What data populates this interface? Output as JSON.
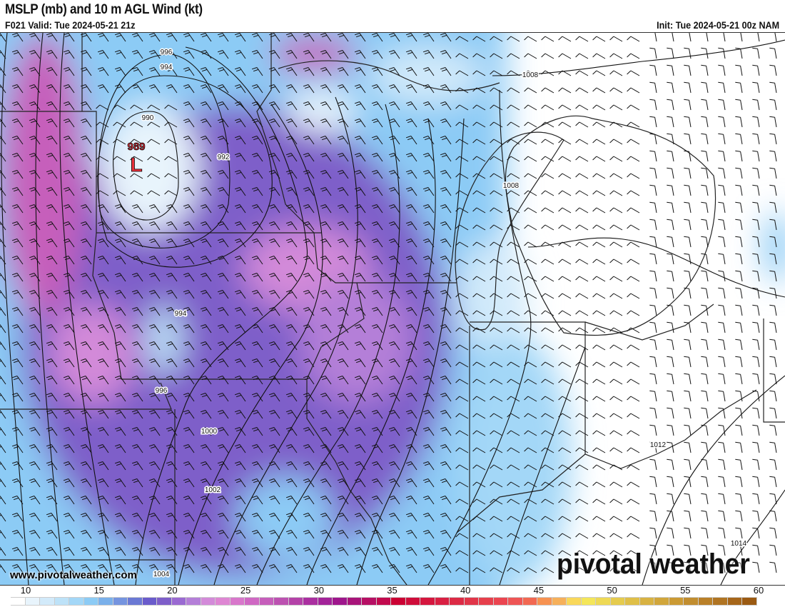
{
  "header": {
    "title": "MSLP (mb) and 10 m AGL Wind (kt)",
    "valid": "F021 Valid: Tue 2024-05-21 21z",
    "init": "Init: Tue 2024-05-21 00z NAM"
  },
  "map": {
    "low_center": {
      "symbol": "L",
      "pressure": "989",
      "color": "#e8323c"
    },
    "isobar_labels": [
      "996",
      "994",
      "990",
      "992",
      "994",
      "996",
      "1000",
      "1002",
      "1004",
      "1008",
      "1008",
      "1012",
      "1014"
    ],
    "field": "10 m wind speed (kt)",
    "barbs": "wind barbs, southwesterly, stronger west of Lake Michigan"
  },
  "footer": {
    "website": "www.pivotalweather.com",
    "logo": "pivotal weather"
  },
  "colorbar": {
    "min": 10,
    "max": 60,
    "step": 1,
    "ticks": [
      "10",
      "15",
      "20",
      "25",
      "30",
      "35",
      "40",
      "45",
      "50",
      "55",
      "60"
    ],
    "colors": [
      "#ffffff",
      "#e8f4fc",
      "#d2eafa",
      "#bde2f8",
      "#a3d7f7",
      "#8ccbf5",
      "#7ab0ea",
      "#7594df",
      "#6b79d4",
      "#6a5bcb",
      "#7e5ec9",
      "#9a6ad2",
      "#b47fd8",
      "#d38ad9",
      "#de86d3",
      "#d877cb",
      "#cf68c3",
      "#c65ebb",
      "#bc52b1",
      "#b442a8",
      "#aa2fa0",
      "#a32399",
      "#9e168c",
      "#a8147a",
      "#b60f64",
      "#c20a4e",
      "#cb0033",
      "#cf0c3a",
      "#d5163e",
      "#d91f42",
      "#dc2a45",
      "#e13549",
      "#e63f4c",
      "#eb4550",
      "#ee5555",
      "#f26852",
      "#f79251",
      "#f6b05a",
      "#f9d85a",
      "#f4e659",
      "#eed955",
      "#e5cb4e",
      "#dfbf48",
      "#d8b242",
      "#d1a63b",
      "#cb9a34",
      "#c18d2f",
      "#b98028",
      "#b07422",
      "#a6661a",
      "#9b5a12"
    ]
  }
}
